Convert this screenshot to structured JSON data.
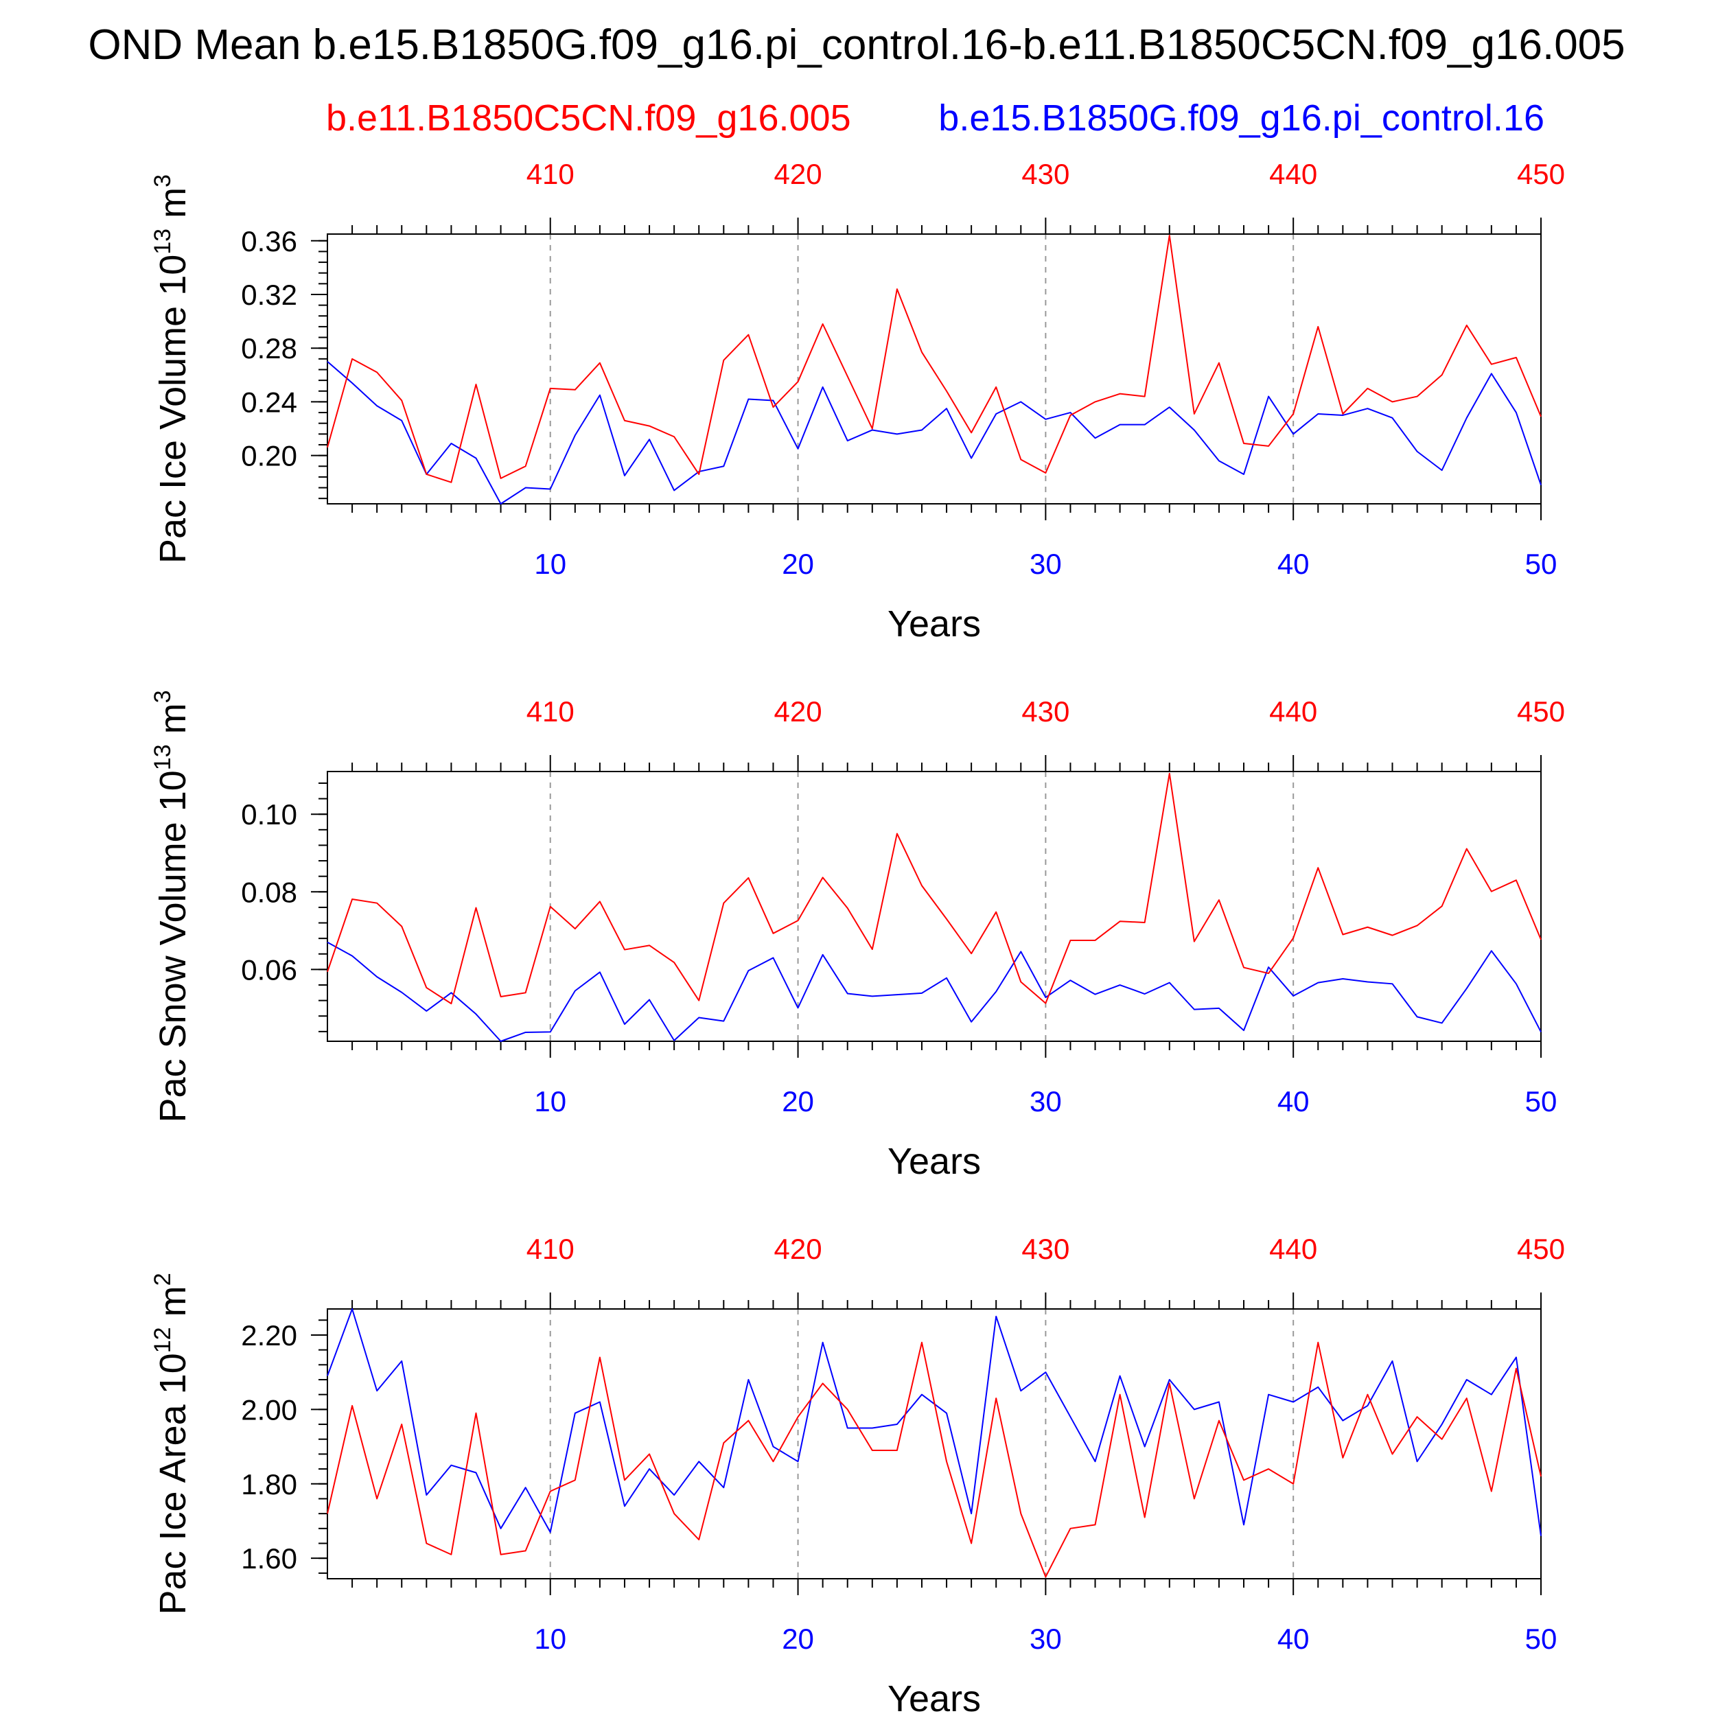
{
  "title": "OND Mean b.e15.B1850G.f09_g16.pi_control.16-b.e11.B1850C5CN.f09_g16.005",
  "subtitle_red": "b.e11.B1850C5CN.f09_g16.005",
  "subtitle_blue": "b.e15.B1850G.f09_g16.pi_control.16",
  "colors": {
    "red_series": "#ff0000",
    "blue_series": "#0000ff",
    "axis": "#000000",
    "grid": "#999999"
  },
  "chart_data": [
    {
      "type": "line",
      "ylabel": "Pac Ice Volume 10",
      "ylabel_sup1": "13",
      "ylabel_unit": " m",
      "ylabel_sup2": "3",
      "xlabel": "Years",
      "xlim": [
        1,
        50
      ],
      "ylim": [
        0.164,
        0.365
      ],
      "yticks": [
        0.2,
        0.24,
        0.28,
        0.32,
        0.36
      ],
      "ytick_labels": [
        "0.20",
        "0.24",
        "0.28",
        "0.32",
        "0.36"
      ],
      "yminor_step": 0.008,
      "xticks_bottom": [
        10,
        20,
        30,
        40,
        50
      ],
      "xtick_labels_bottom": [
        "10",
        "20",
        "30",
        "40",
        "50"
      ],
      "xticks_top": [
        10,
        20,
        30,
        40,
        50
      ],
      "xtick_labels_top": [
        "410",
        "420",
        "430",
        "440",
        "450"
      ],
      "grid": "dashed vertical at major x ticks",
      "series": [
        {
          "color": "#0000ff",
          "x": [
            1,
            2,
            3,
            4,
            5,
            6,
            7,
            8,
            9,
            10,
            11,
            12,
            13,
            14,
            15,
            16,
            17,
            18,
            19,
            20,
            21,
            22,
            23,
            24,
            25,
            26,
            27,
            28,
            29,
            30,
            31,
            32,
            33,
            34,
            35,
            36,
            37,
            38,
            39,
            40,
            41,
            42,
            43,
            44,
            45,
            46,
            47,
            48,
            49,
            50
          ],
          "values": [
            0.27,
            0.254,
            0.237,
            0.226,
            0.186,
            0.209,
            0.198,
            0.164,
            0.176,
            0.175,
            0.215,
            0.245,
            0.185,
            0.212,
            0.174,
            0.188,
            0.192,
            0.242,
            0.241,
            0.205,
            0.251,
            0.211,
            0.219,
            0.216,
            0.219,
            0.235,
            0.198,
            0.231,
            0.24,
            0.227,
            0.232,
            0.213,
            0.223,
            0.223,
            0.236,
            0.219,
            0.196,
            0.186,
            0.244,
            0.216,
            0.231,
            0.23,
            0.235,
            0.228,
            0.203,
            0.189,
            0.228,
            0.261,
            0.232,
            0.178
          ]
        },
        {
          "color": "#ff0000",
          "x": [
            1,
            2,
            3,
            4,
            5,
            6,
            7,
            8,
            9,
            10,
            11,
            12,
            13,
            14,
            15,
            16,
            17,
            18,
            19,
            20,
            21,
            22,
            23,
            24,
            25,
            26,
            27,
            28,
            29,
            30,
            31,
            32,
            33,
            34,
            35,
            36,
            37,
            38,
            39,
            40,
            41,
            42,
            43,
            44,
            45,
            46,
            47,
            48,
            49,
            50
          ],
          "values": [
            0.206,
            0.272,
            0.262,
            0.241,
            0.186,
            0.18,
            0.253,
            0.183,
            0.192,
            0.25,
            0.249,
            0.269,
            0.226,
            0.222,
            0.214,
            0.186,
            0.271,
            0.29,
            0.236,
            0.255,
            0.298,
            0.259,
            0.22,
            0.324,
            0.277,
            0.248,
            0.217,
            0.251,
            0.197,
            0.187,
            0.23,
            0.24,
            0.246,
            0.244,
            0.364,
            0.231,
            0.269,
            0.209,
            0.207,
            0.231,
            0.296,
            0.231,
            0.25,
            0.24,
            0.244,
            0.26,
            0.297,
            0.268,
            0.273,
            0.229
          ]
        }
      ]
    },
    {
      "type": "line",
      "ylabel": "Pac Snow Volume 10",
      "ylabel_sup1": "13",
      "ylabel_unit": " m",
      "ylabel_sup2": "3",
      "xlabel": "Years",
      "xlim": [
        1,
        50
      ],
      "ylim": [
        0.0415,
        0.111
      ],
      "yticks": [
        0.06,
        0.08,
        0.1
      ],
      "ytick_labels": [
        "0.06",
        "0.08",
        "0.10"
      ],
      "yminor_step": 0.004,
      "xticks_bottom": [
        10,
        20,
        30,
        40,
        50
      ],
      "xtick_labels_bottom": [
        "10",
        "20",
        "30",
        "40",
        "50"
      ],
      "xticks_top": [
        10,
        20,
        30,
        40,
        50
      ],
      "xtick_labels_top": [
        "410",
        "420",
        "430",
        "440",
        "450"
      ],
      "grid": "dashed vertical at major x ticks",
      "series": [
        {
          "color": "#0000ff",
          "x": [
            1,
            2,
            3,
            4,
            5,
            6,
            7,
            8,
            9,
            10,
            11,
            12,
            13,
            14,
            15,
            16,
            17,
            18,
            19,
            20,
            21,
            22,
            23,
            24,
            25,
            26,
            27,
            28,
            29,
            30,
            31,
            32,
            33,
            34,
            35,
            36,
            37,
            38,
            39,
            40,
            41,
            42,
            43,
            44,
            45,
            46,
            47,
            48,
            49,
            50
          ],
          "values": [
            0.067,
            0.0635,
            0.0581,
            0.0541,
            0.0493,
            0.054,
            0.0485,
            0.0415,
            0.0438,
            0.0439,
            0.0545,
            0.0593,
            0.0459,
            0.0522,
            0.0417,
            0.0476,
            0.0467,
            0.0597,
            0.063,
            0.0501,
            0.0638,
            0.0538,
            0.0531,
            0.0535,
            0.0539,
            0.0578,
            0.0465,
            0.0543,
            0.0646,
            0.0528,
            0.0572,
            0.0536,
            0.056,
            0.0537,
            0.0566,
            0.0497,
            0.05,
            0.0443,
            0.0606,
            0.0532,
            0.0566,
            0.0576,
            0.0568,
            0.0563,
            0.0478,
            0.0462,
            0.0551,
            0.0648,
            0.0563,
            0.0439
          ]
        },
        {
          "color": "#ff0000",
          "x": [
            1,
            2,
            3,
            4,
            5,
            6,
            7,
            8,
            9,
            10,
            11,
            12,
            13,
            14,
            15,
            16,
            17,
            18,
            19,
            20,
            21,
            22,
            23,
            24,
            25,
            26,
            27,
            28,
            29,
            30,
            31,
            32,
            33,
            34,
            35,
            36,
            37,
            38,
            39,
            40,
            41,
            42,
            43,
            44,
            45,
            46,
            47,
            48,
            49,
            50
          ],
          "values": [
            0.0594,
            0.0781,
            0.0771,
            0.0711,
            0.0553,
            0.0512,
            0.0759,
            0.053,
            0.054,
            0.0762,
            0.0705,
            0.0775,
            0.0651,
            0.0662,
            0.0618,
            0.052,
            0.0771,
            0.0836,
            0.0693,
            0.0726,
            0.0837,
            0.0758,
            0.0652,
            0.095,
            0.0816,
            0.073,
            0.0641,
            0.0748,
            0.0568,
            0.0513,
            0.0675,
            0.0675,
            0.0724,
            0.0721,
            0.1105,
            0.0672,
            0.0779,
            0.0605,
            0.059,
            0.0681,
            0.0862,
            0.069,
            0.0709,
            0.0688,
            0.0713,
            0.0763,
            0.0911,
            0.0801,
            0.083,
            0.0677
          ]
        }
      ]
    },
    {
      "type": "line",
      "ylabel": "Pac Ice Area 10",
      "ylabel_sup1": "12",
      "ylabel_unit": " m",
      "ylabel_sup2": "2",
      "xlabel": "Years",
      "xlim": [
        1,
        50
      ],
      "ylim": [
        1.545,
        2.27
      ],
      "yticks": [
        1.6,
        1.8,
        2.0,
        2.2
      ],
      "ytick_labels": [
        "1.60",
        "1.80",
        "2.00",
        "2.20"
      ],
      "yminor_step": 0.04,
      "xticks_bottom": [
        10,
        20,
        30,
        40,
        50
      ],
      "xtick_labels_bottom": [
        "10",
        "20",
        "30",
        "40",
        "50"
      ],
      "xticks_top": [
        10,
        20,
        30,
        40,
        50
      ],
      "xtick_labels_top": [
        "410",
        "420",
        "430",
        "440",
        "450"
      ],
      "grid": "dashed vertical at major x ticks",
      "series": [
        {
          "color": "#0000ff",
          "x": [
            1,
            2,
            3,
            4,
            5,
            6,
            7,
            8,
            9,
            10,
            11,
            12,
            13,
            14,
            15,
            16,
            17,
            18,
            19,
            20,
            21,
            22,
            23,
            24,
            25,
            26,
            27,
            28,
            29,
            30,
            31,
            32,
            33,
            34,
            35,
            36,
            37,
            38,
            39,
            40,
            41,
            42,
            43,
            44,
            45,
            46,
            47,
            48,
            49,
            50
          ],
          "values": [
            2.09,
            2.27,
            2.05,
            2.13,
            1.77,
            1.85,
            1.83,
            1.68,
            1.79,
            1.67,
            1.99,
            2.02,
            1.74,
            1.84,
            1.77,
            1.86,
            1.79,
            2.08,
            1.9,
            1.86,
            2.18,
            1.95,
            1.95,
            1.96,
            2.04,
            1.99,
            1.72,
            2.25,
            2.05,
            2.1,
            1.98,
            1.86,
            2.09,
            1.9,
            2.08,
            2.0,
            2.02,
            1.69,
            2.04,
            2.02,
            2.06,
            1.97,
            2.01,
            2.13,
            1.86,
            1.96,
            2.08,
            2.04,
            2.14,
            1.66
          ]
        },
        {
          "color": "#ff0000",
          "x": [
            1,
            2,
            3,
            4,
            5,
            6,
            7,
            8,
            9,
            10,
            11,
            12,
            13,
            14,
            15,
            16,
            17,
            18,
            19,
            20,
            21,
            22,
            23,
            24,
            25,
            26,
            27,
            28,
            29,
            30,
            31,
            32,
            33,
            34,
            35,
            36,
            37,
            38,
            39,
            40,
            41,
            42,
            43,
            44,
            45,
            46,
            47,
            48,
            49,
            50
          ],
          "values": [
            1.72,
            2.01,
            1.76,
            1.96,
            1.64,
            1.61,
            1.99,
            1.61,
            1.62,
            1.78,
            1.81,
            2.14,
            1.81,
            1.88,
            1.72,
            1.65,
            1.91,
            1.97,
            1.86,
            1.98,
            2.07,
            2.0,
            1.89,
            1.89,
            2.18,
            1.86,
            1.64,
            2.03,
            1.72,
            1.55,
            1.68,
            1.69,
            2.04,
            1.71,
            2.07,
            1.76,
            1.97,
            1.81,
            1.84,
            1.8,
            2.18,
            1.87,
            2.04,
            1.88,
            1.98,
            1.92,
            2.03,
            1.78,
            2.11,
            1.82
          ]
        }
      ]
    }
  ]
}
